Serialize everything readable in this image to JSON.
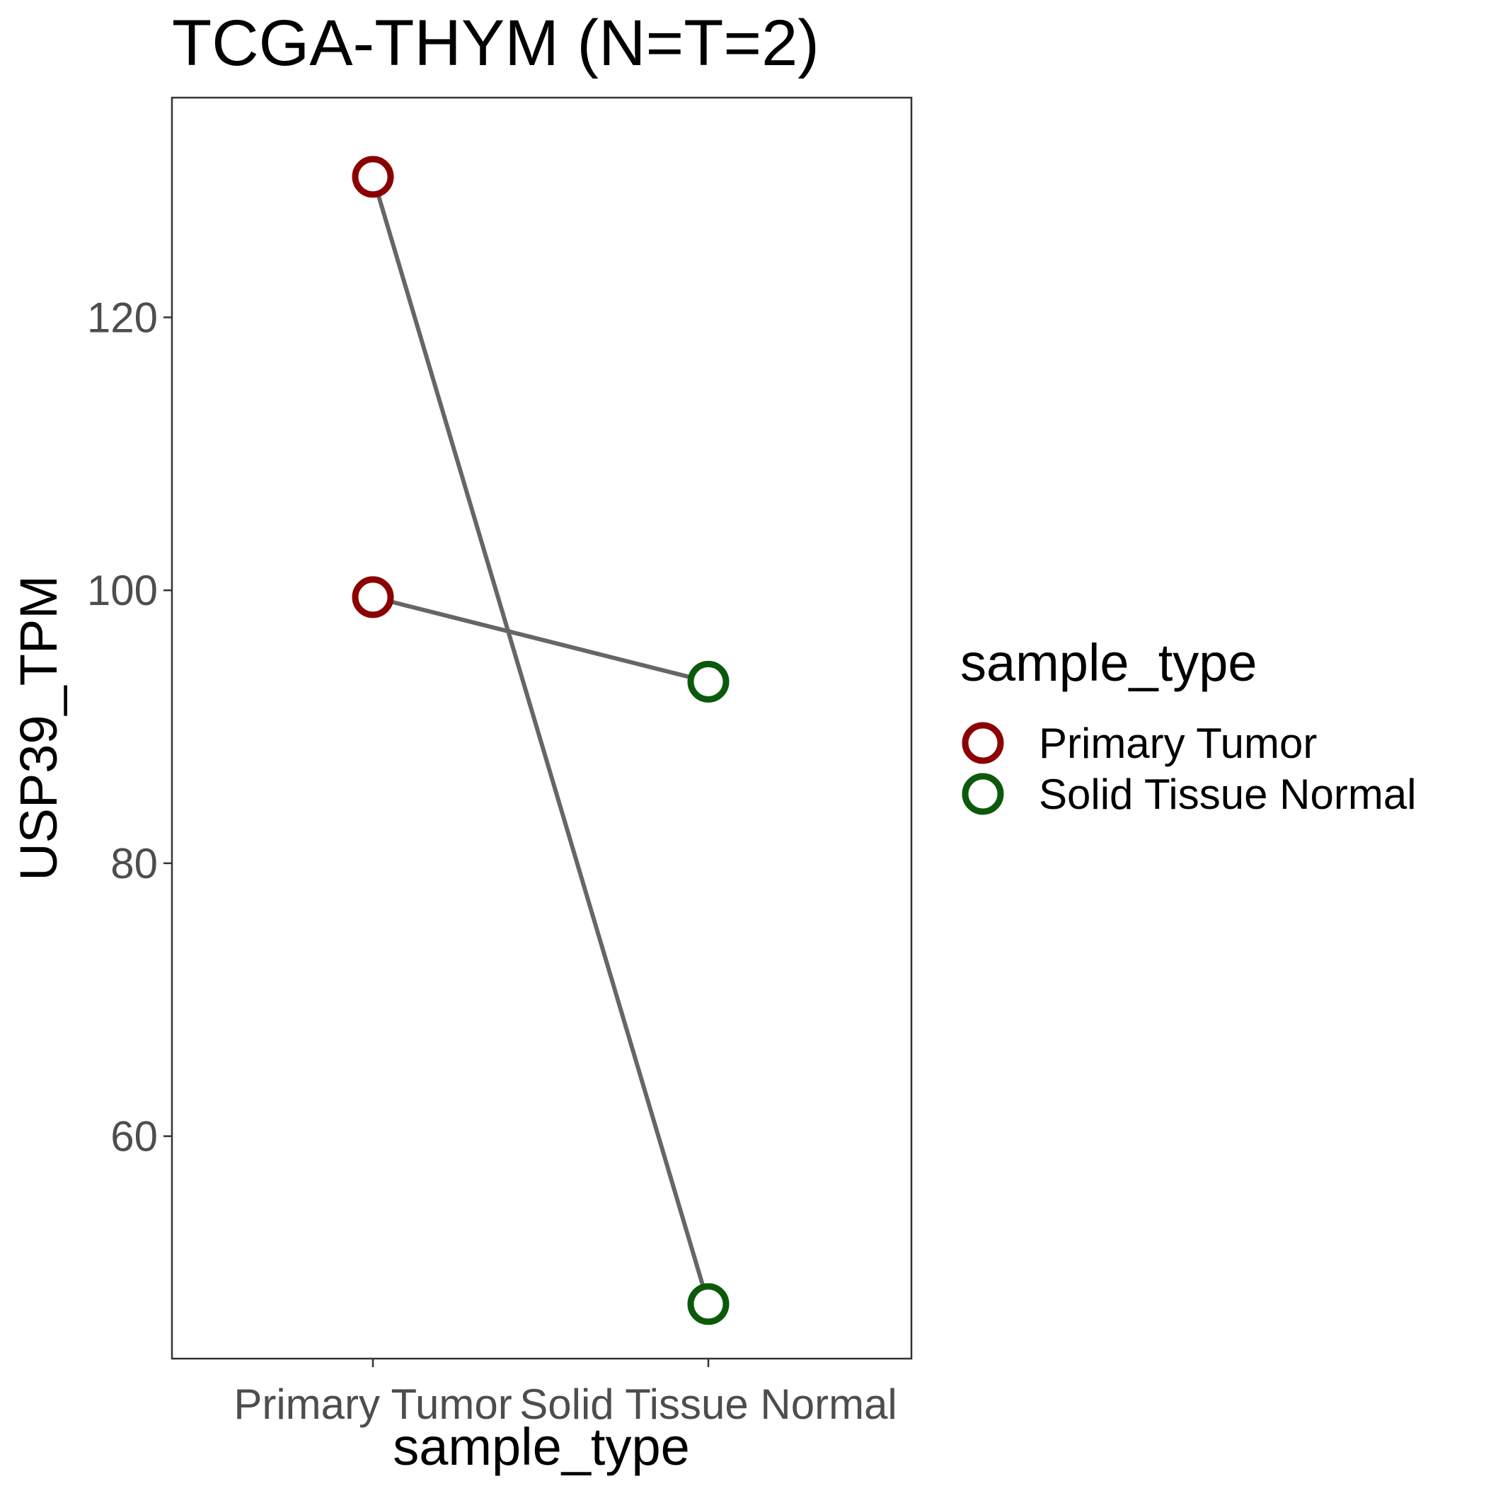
{
  "chart_data": {
    "type": "line",
    "title": "TCGA-THYM  (N=T=2)",
    "xlabel": "sample_type",
    "ylabel": "USP39_TPM",
    "categories": [
      "Primary Tumor",
      "Solid Tissue Normal"
    ],
    "ylim": [
      43.7,
      136.1
    ],
    "yticks": [
      60,
      80,
      100,
      120
    ],
    "grid": false,
    "line_color": "#666666",
    "pairs": [
      {
        "values": [
          130.3,
          47.7
        ]
      },
      {
        "values": [
          99.5,
          93.3
        ]
      }
    ],
    "legend": {
      "title": "sample_type",
      "placement": "right",
      "entries": [
        {
          "label": "Primary Tumor",
          "color": "#8b0000"
        },
        {
          "label": "Solid Tissue Normal",
          "color": "#0b5a0b"
        }
      ]
    }
  }
}
